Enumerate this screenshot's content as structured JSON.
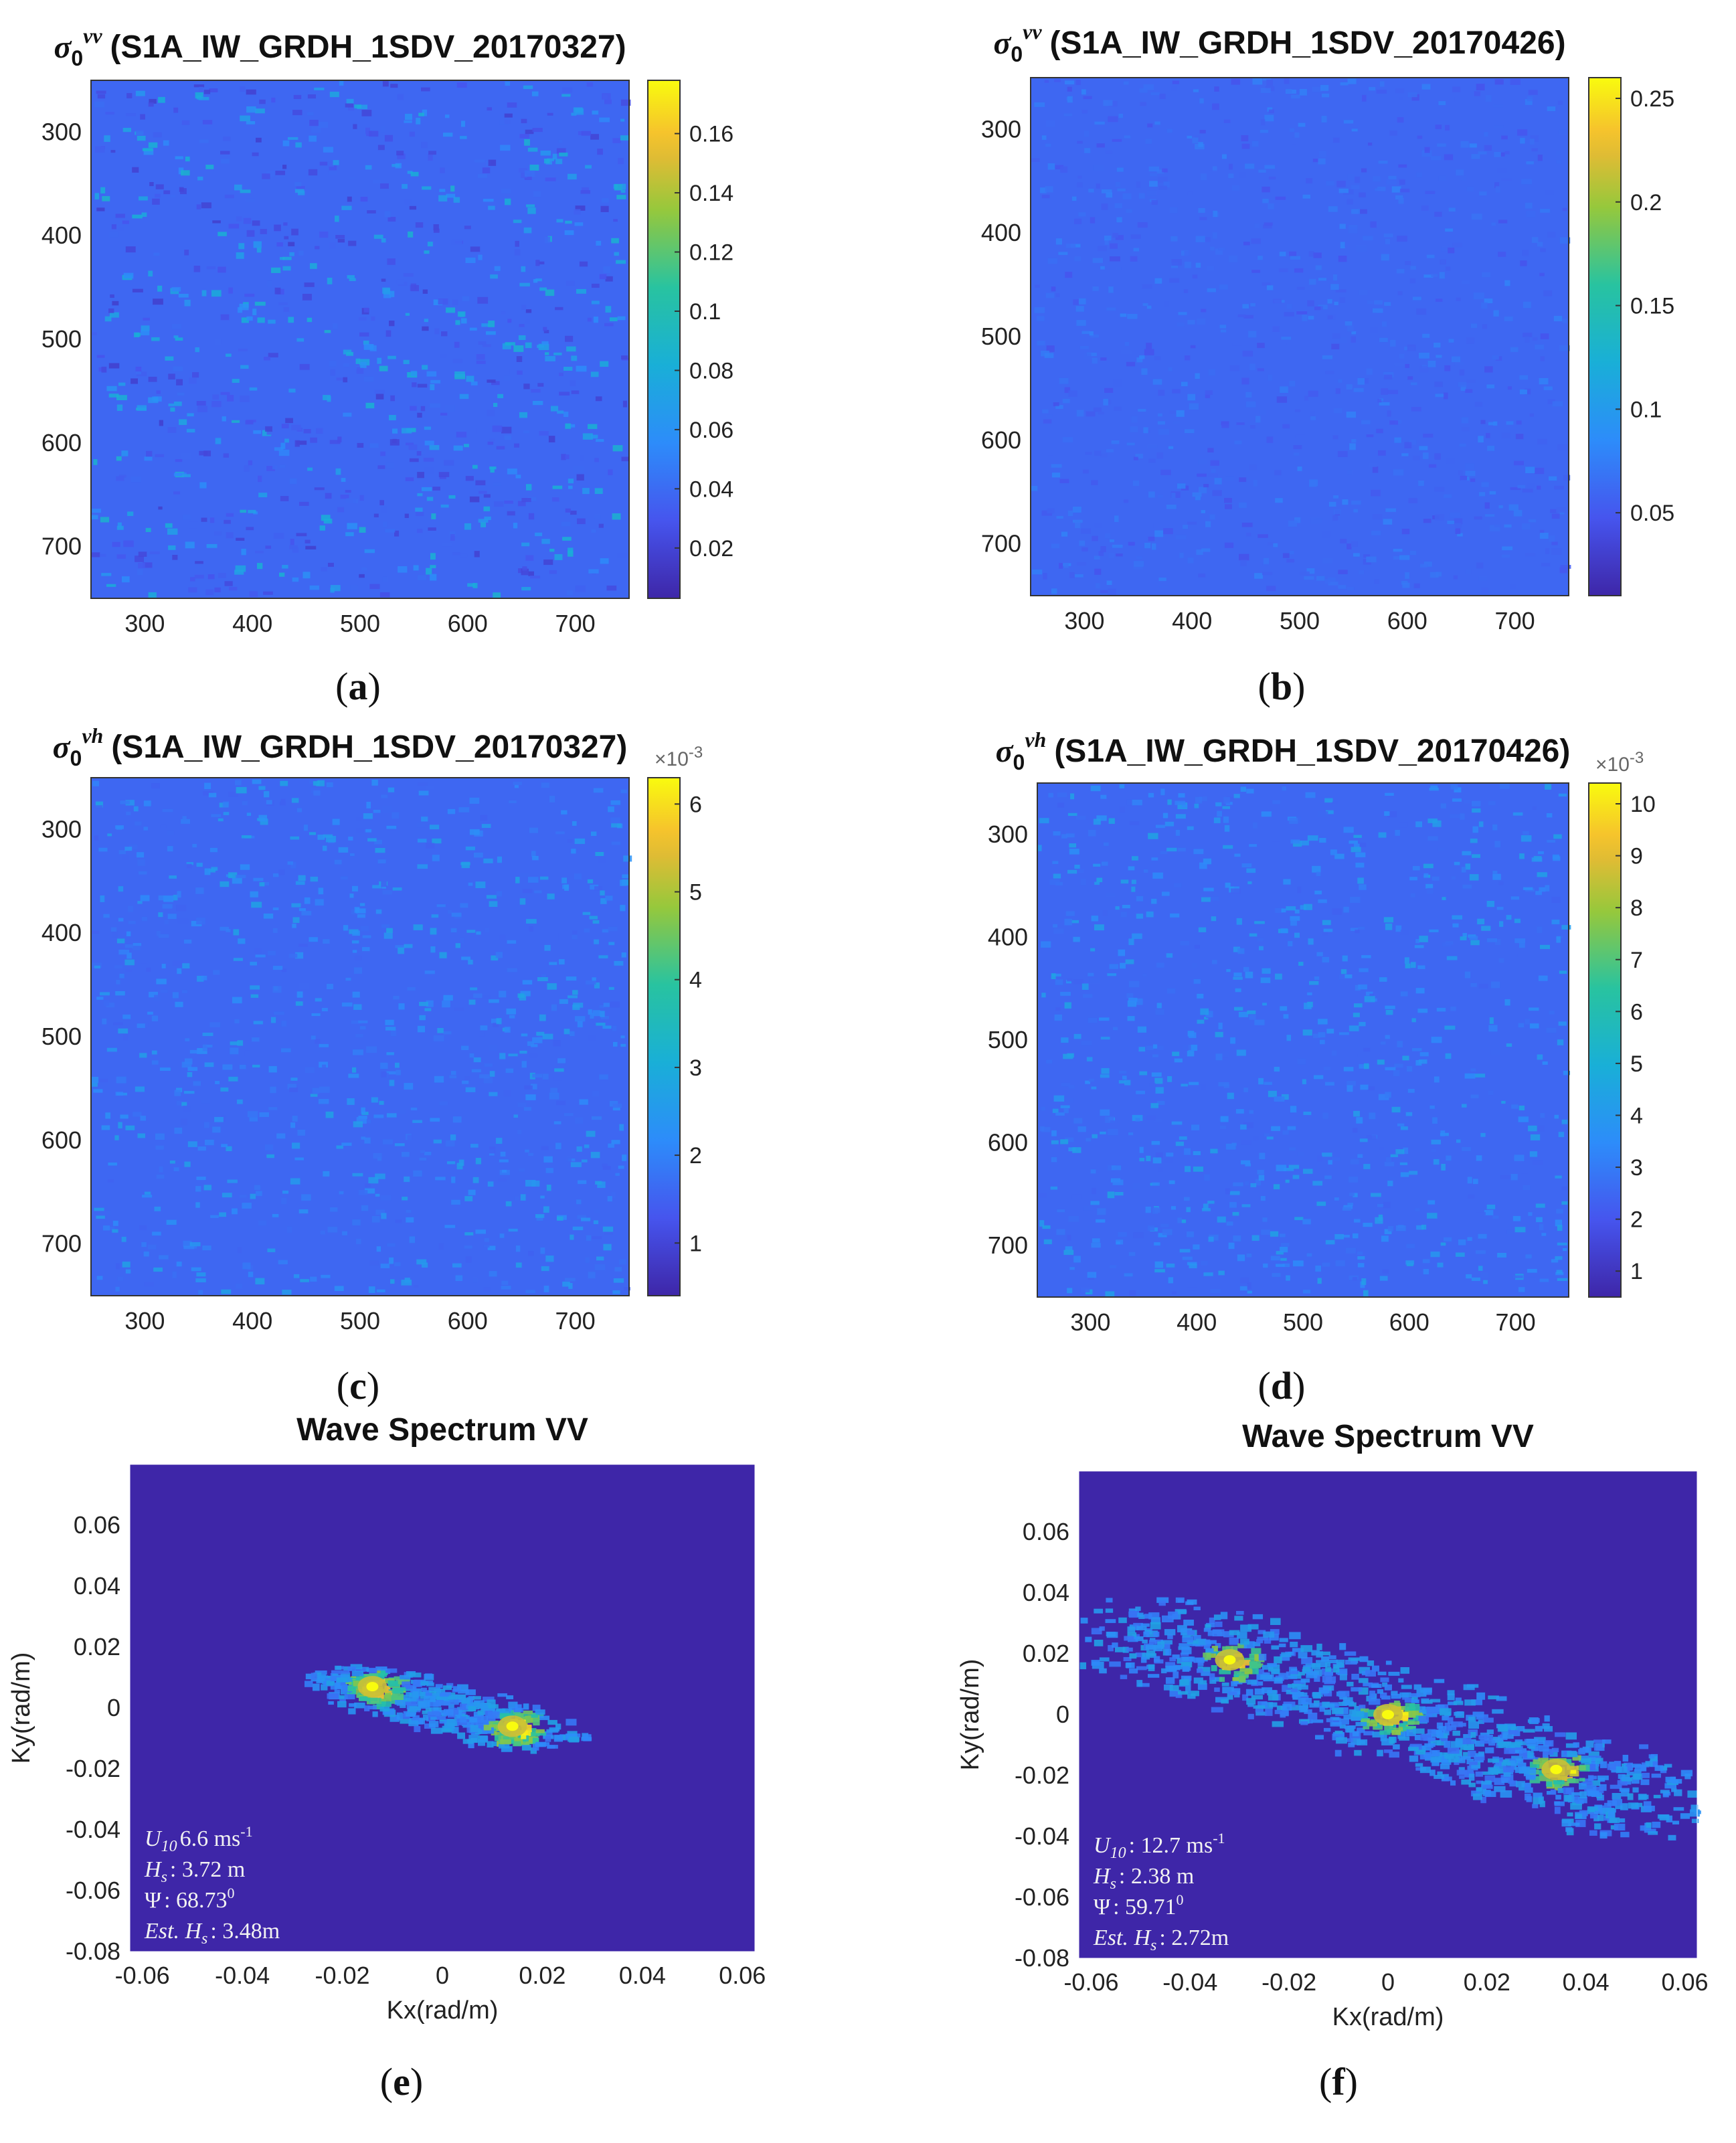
{
  "chart_data": [
    {
      "id": "a",
      "type": "heatmap",
      "title_prefix": "σ",
      "title_sub": "0",
      "title_sup": "vv",
      "title_text": "(S1A_IW_GRDH_1SDV_20170327)",
      "xlim": [
        250,
        750
      ],
      "ylim": [
        250,
        750
      ],
      "xticks": [
        300,
        400,
        500,
        600,
        700
      ],
      "yticks": [
        300,
        400,
        500,
        600,
        700
      ],
      "colorbar": {
        "min": 0.003,
        "max": 0.178,
        "ticks": [
          "0.02",
          "0.04",
          "0.06",
          "0.08",
          "0.1",
          "0.12",
          "0.14",
          "0.16"
        ],
        "tick_values": [
          0.02,
          0.04,
          0.06,
          0.08,
          0.1,
          0.12,
          0.14,
          0.16
        ],
        "exponent": ""
      },
      "colormap": "parula",
      "texture": "wavy swell streaks",
      "label": "(a)"
    },
    {
      "id": "b",
      "type": "heatmap",
      "title_prefix": "σ",
      "title_sub": "0",
      "title_sup": "vv",
      "title_text": "(S1A_IW_GRDH_1SDV_20170426)",
      "xlim": [
        250,
        750
      ],
      "ylim": [
        250,
        750
      ],
      "xticks": [
        300,
        400,
        500,
        600,
        700
      ],
      "yticks": [
        300,
        400,
        500,
        600,
        700
      ],
      "colorbar": {
        "min": 0.01,
        "max": 0.26,
        "ticks": [
          "0.05",
          "0.1",
          "0.15",
          "0.2",
          "0.25"
        ],
        "tick_values": [
          0.05,
          0.1,
          0.15,
          0.2,
          0.25
        ],
        "exponent": ""
      },
      "colormap": "parula",
      "texture": "fine speckle",
      "label": "(b)"
    },
    {
      "id": "c",
      "type": "heatmap",
      "title_prefix": "σ",
      "title_sub": "0",
      "title_sup": "vh",
      "title_text": "(S1A_IW_GRDH_1SDV_20170327)",
      "xlim": [
        250,
        750
      ],
      "ylim": [
        250,
        750
      ],
      "xticks": [
        300,
        400,
        500,
        600,
        700
      ],
      "yticks": [
        300,
        400,
        500,
        600,
        700
      ],
      "colorbar": {
        "min": 0.4,
        "max": 6.3,
        "ticks": [
          "1",
          "2",
          "3",
          "4",
          "5",
          "6"
        ],
        "tick_values": [
          1,
          2,
          3,
          4,
          5,
          6
        ],
        "exponent": "×10",
        "exponent_power": "-3"
      },
      "colormap": "parula",
      "texture": "speckle",
      "label": "(c)"
    },
    {
      "id": "d",
      "type": "heatmap",
      "title_prefix": "σ",
      "title_sub": "0",
      "title_sup": "vh",
      "title_text": "(S1A_IW_GRDH_1SDV_20170426)",
      "xlim": [
        250,
        750
      ],
      "ylim": [
        250,
        750
      ],
      "xticks": [
        300,
        400,
        500,
        600,
        700
      ],
      "yticks": [
        300,
        400,
        500,
        600,
        700
      ],
      "colorbar": {
        "min": 0.5,
        "max": 10.4,
        "ticks": [
          "1",
          "2",
          "3",
          "4",
          "5",
          "6",
          "7",
          "8",
          "9",
          "10"
        ],
        "tick_values": [
          1,
          2,
          3,
          4,
          5,
          6,
          7,
          8,
          9,
          10
        ],
        "exponent": "×10",
        "exponent_power": "-3"
      },
      "colormap": "parula",
      "texture": "speckle",
      "label": "(d)"
    },
    {
      "id": "e",
      "type": "heatmap",
      "title": "Wave Spectrum VV",
      "xlabel": "Kx(rad/m)",
      "ylabel": "Ky(rad/m)",
      "xlim": [
        -0.0625,
        0.0625
      ],
      "ylim": [
        -0.08,
        0.08
      ],
      "xticks": [
        "-0.06",
        "-0.04",
        "-0.02",
        "0",
        "0.02",
        "0.04",
        "0.06"
      ],
      "xtick_values": [
        -0.06,
        -0.04,
        -0.02,
        0,
        0.02,
        0.04,
        0.06
      ],
      "yticks": [
        "0.06",
        "0.04",
        "0.02",
        "0",
        "-0.02",
        "-0.04",
        "-0.06",
        "-0.08"
      ],
      "ytick_values": [
        0.06,
        0.04,
        0.02,
        0,
        -0.02,
        -0.04,
        -0.06,
        -0.08
      ],
      "peaks": [
        {
          "kx": -0.014,
          "ky": 0.007
        },
        {
          "kx": 0.014,
          "ky": -0.006
        }
      ],
      "annotations": {
        "u10": "6.6  ms",
        "u10_sup": "-1",
        "hs": ": 3.72 m",
        "psi": ": 68.73",
        "psi_sup": "0",
        "est": ": 3.48m"
      },
      "label": "(e)"
    },
    {
      "id": "f",
      "type": "heatmap",
      "title": "Wave Spectrum VV",
      "xlabel": "Kx(rad/m)",
      "ylabel": "Ky(rad/m)",
      "xlim": [
        -0.0625,
        0.0625
      ],
      "ylim": [
        -0.08,
        0.08
      ],
      "xticks": [
        "-0.06",
        "-0.04",
        "-0.02",
        "0",
        "0.02",
        "0.04",
        "0.06"
      ],
      "xtick_values": [
        -0.06,
        -0.04,
        -0.02,
        0,
        0.02,
        0.04,
        0.06
      ],
      "yticks": [
        "0.06",
        "0.04",
        "0.02",
        "0",
        "-0.02",
        "-0.04",
        "-0.06",
        "-0.08"
      ],
      "ytick_values": [
        0.06,
        0.04,
        0.02,
        0,
        -0.02,
        -0.04,
        -0.06,
        -0.08
      ],
      "peaks": [
        {
          "kx": -0.032,
          "ky": 0.018
        },
        {
          "kx": 0.034,
          "ky": -0.018
        },
        {
          "kx": 0.0,
          "ky": 0.0
        }
      ],
      "annotations": {
        "u10": ": 12.7  ms",
        "u10_sup": "-1",
        "hs": ": 2.38 m",
        "psi": ": 59.71",
        "psi_sup": "0",
        "est": ": 2.72m"
      },
      "label": "(f)"
    }
  ],
  "annotation_labels": {
    "u10": "U",
    "u10_sub": "10",
    "hs": "H",
    "hs_sub": "s",
    "psi": "Ψ",
    "est": "Est. H",
    "est_sub": "s"
  },
  "colors": {
    "background_low": "#3e26a8",
    "mid": "#2db1d0",
    "high": "#f9fb0e"
  }
}
